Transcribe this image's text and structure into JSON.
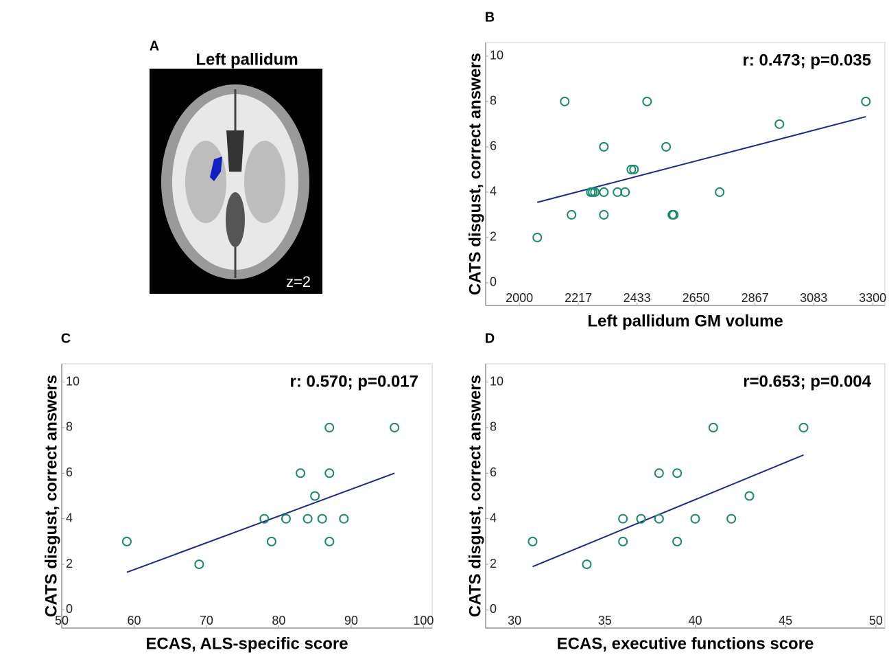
{
  "panel_a": {
    "label": "A",
    "title": "Left pallidum",
    "annotation": "z=2"
  },
  "chart_data": [
    {
      "type": "scatter",
      "label": "B",
      "annotation": "r: 0.473; p=0.035",
      "xlabel": "Left pallidum GM volume",
      "ylabel": "CATS disgust, correct answers",
      "x": [
        2066,
        2167,
        2192,
        2263,
        2270,
        2278,
        2311,
        2311,
        2311,
        2361,
        2389,
        2412,
        2422,
        2470,
        2540,
        2563,
        2568,
        2737,
        2957,
        3275
      ],
      "values": [
        2,
        8,
        3,
        4,
        4,
        4,
        4,
        6,
        3,
        4,
        4,
        5,
        5,
        8,
        6,
        3,
        3,
        4,
        7,
        8
      ],
      "color": "#1a8a6a",
      "fit_line": {
        "x": [
          2066,
          3275
        ],
        "values": [
          3.55,
          7.33
        ],
        "color": "#1c2a8c"
      },
      "xlim": [
        1876,
        3345
      ],
      "ylim": [
        -1,
        10.6
      ],
      "xticks": [
        2000,
        2217,
        2433,
        2650,
        2867,
        3083,
        3300
      ],
      "yticks": [
        0,
        2,
        4,
        6,
        8,
        10
      ]
    },
    {
      "type": "scatter",
      "label": "C",
      "annotation": "r: 0.570; p=0.017",
      "xlabel": "ECAS, ALS-specific score",
      "ylabel": "CATS disgust, correct answers",
      "x": [
        59,
        69,
        78,
        79,
        81,
        83,
        84,
        85,
        86,
        87,
        87,
        87,
        89,
        96
      ],
      "values": [
        3,
        2,
        4,
        3,
        4,
        6,
        4,
        5,
        4,
        8,
        6,
        3,
        4,
        8
      ],
      "color": "#1a8a6a",
      "fit_line": {
        "x": [
          59,
          96
        ],
        "values": [
          1.65,
          6.0
        ],
        "color": "#1c2a8c"
      },
      "xlim": [
        50,
        101.2
      ],
      "ylim": [
        -0.8,
        10.8
      ],
      "xticks": [
        50,
        60,
        70,
        80,
        90,
        100
      ],
      "yticks": [
        0,
        2,
        4,
        6,
        8,
        10
      ]
    },
    {
      "type": "scatter",
      "label": "D",
      "annotation": "r=0.653; p=0.004",
      "xlabel": "ECAS, executive functions score",
      "ylabel": "CATS disgust, correct answers",
      "x": [
        31,
        34,
        36,
        36,
        37,
        38,
        38,
        39,
        39,
        40,
        41,
        42,
        43,
        46
      ],
      "values": [
        3,
        2,
        4,
        3,
        4,
        6,
        4,
        6,
        3,
        4,
        8,
        4,
        5,
        8
      ],
      "color": "#1a8a6a",
      "fit_line": {
        "x": [
          31,
          46
        ],
        "values": [
          1.9,
          6.8
        ],
        "color": "#1c2a8c"
      },
      "xlim": [
        28.4,
        50.5
      ],
      "ylim": [
        -0.8,
        10.8
      ],
      "xticks": [
        30,
        35,
        40,
        45,
        50
      ],
      "yticks": [
        0,
        2,
        4,
        6,
        8,
        10
      ]
    }
  ]
}
